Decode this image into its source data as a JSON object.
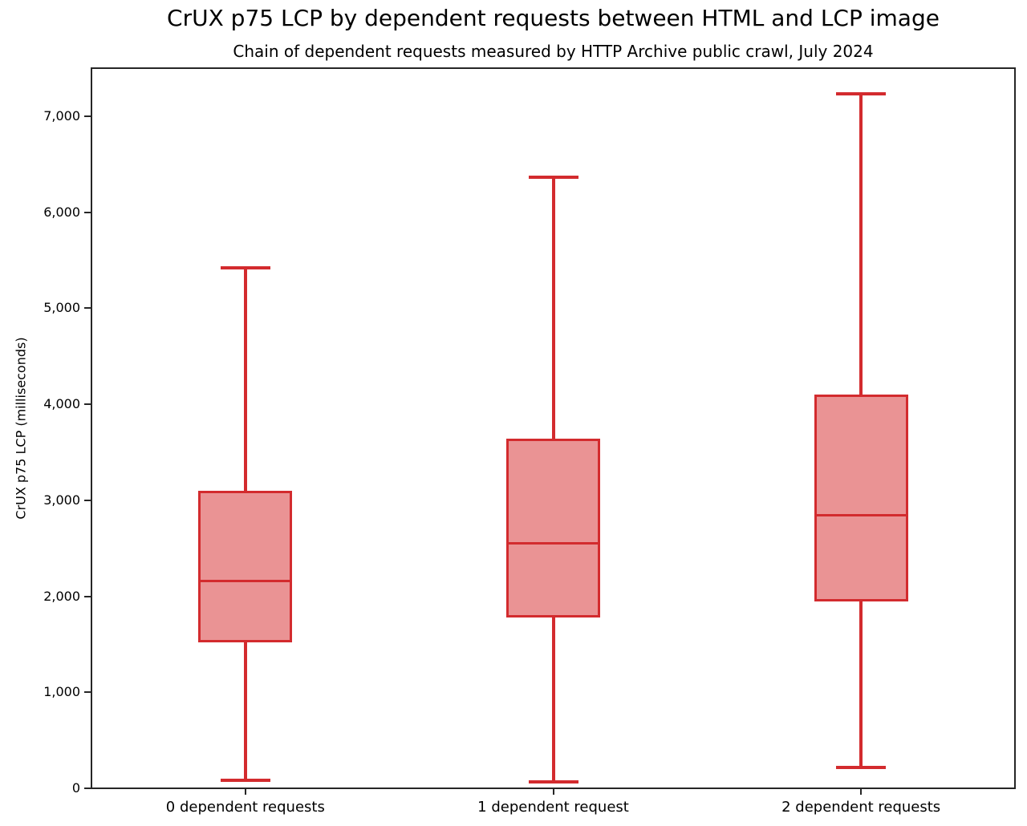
{
  "chart_data": {
    "type": "boxplot",
    "title": "CrUX p75 LCP by dependent requests between HTML and LCP image",
    "subtitle": "Chain of dependent requests measured by HTTP Archive public crawl, July 2024",
    "xlabel": "",
    "ylabel": "CrUX p75 LCP (milliseconds)",
    "categories": [
      "0 dependent requests",
      "1 dependent request",
      "2 dependent requests"
    ],
    "series": [
      {
        "name": "0 dependent requests",
        "whisker_low": 80,
        "q1": 1530,
        "median": 2160,
        "q3": 3090,
        "whisker_high": 5420
      },
      {
        "name": "1 dependent request",
        "whisker_low": 65,
        "q1": 1790,
        "median": 2550,
        "q3": 3630,
        "whisker_high": 6360
      },
      {
        "name": "2 dependent requests",
        "whisker_low": 215,
        "q1": 1960,
        "median": 2840,
        "q3": 4090,
        "whisker_high": 7230
      }
    ],
    "ylim": [
      0,
      7500
    ],
    "yticks": [
      0,
      1000,
      2000,
      3000,
      4000,
      5000,
      6000,
      7000
    ],
    "ytick_labels": [
      "0",
      "1,000",
      "2,000",
      "3,000",
      "4,000",
      "5,000",
      "6,000",
      "7,000"
    ],
    "grid": false,
    "legend": null,
    "colors": {
      "box_edge": "#d32b2e",
      "box_fill": "#ea9394",
      "spine": "#262626",
      "text": "#000000"
    }
  }
}
